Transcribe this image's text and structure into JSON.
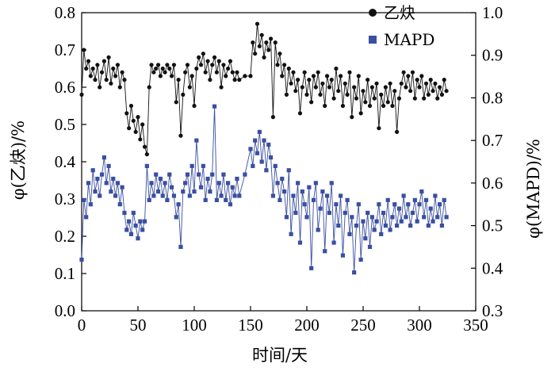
{
  "chart_data": {
    "type": "line",
    "xlabel": "时间/天",
    "ylabel_left": "φ(乙炔)/%",
    "ylabel_right": "φ(MAPD)/%",
    "xlim": [
      0,
      350
    ],
    "xticks": [
      0,
      50,
      100,
      150,
      200,
      250,
      300,
      350
    ],
    "ylim_left": [
      0.0,
      0.8
    ],
    "yticks_left": [
      0.0,
      0.1,
      0.2,
      0.3,
      0.4,
      0.5,
      0.6,
      0.7,
      0.8
    ],
    "ytick_labels_left": [
      "0.0",
      "0.1",
      "0.2",
      "0.3",
      "0.4",
      "0.5",
      "0.6",
      "0.7",
      "0.8"
    ],
    "ylim_right": [
      0.3,
      1.0
    ],
    "yticks_right": [
      0.3,
      0.4,
      0.5,
      0.6,
      0.7,
      0.8,
      0.9,
      1.0
    ],
    "ytick_labels_right": [
      "0.3",
      "0.4",
      "0.5",
      "0.6",
      "0.7",
      "0.8",
      "0.9",
      "1.0"
    ],
    "legend_position": "top-right",
    "colors": {
      "acetylene": "#111111",
      "mapd": "#3a4fa0"
    },
    "series": [
      {
        "name": "乙炔",
        "axis": "left",
        "marker": "circle",
        "x": [
          0,
          2,
          4,
          6,
          8,
          10,
          12,
          14,
          16,
          18,
          20,
          22,
          24,
          26,
          28,
          30,
          32,
          34,
          36,
          38,
          40,
          42,
          44,
          46,
          48,
          50,
          52,
          54,
          56,
          58,
          60,
          62,
          64,
          66,
          68,
          70,
          72,
          74,
          76,
          78,
          80,
          82,
          84,
          86,
          88,
          90,
          92,
          94,
          96,
          98,
          100,
          102,
          104,
          106,
          108,
          110,
          112,
          114,
          116,
          118,
          120,
          122,
          124,
          126,
          128,
          130,
          132,
          134,
          136,
          138,
          140,
          145,
          150,
          152,
          154,
          156,
          158,
          160,
          162,
          164,
          166,
          168,
          170,
          172,
          174,
          176,
          178,
          180,
          182,
          184,
          186,
          188,
          190,
          192,
          194,
          196,
          198,
          200,
          202,
          204,
          206,
          208,
          210,
          212,
          214,
          216,
          218,
          220,
          222,
          224,
          226,
          228,
          230,
          232,
          234,
          236,
          238,
          240,
          242,
          244,
          246,
          248,
          250,
          252,
          254,
          256,
          258,
          260,
          262,
          264,
          266,
          268,
          270,
          272,
          274,
          276,
          278,
          280,
          282,
          284,
          286,
          288,
          290,
          292,
          294,
          296,
          298,
          300,
          302,
          304,
          306,
          308,
          310,
          312,
          314,
          316,
          318,
          320,
          322,
          324
        ],
        "values": [
          0.58,
          0.7,
          0.65,
          0.67,
          0.63,
          0.65,
          0.62,
          0.66,
          0.6,
          0.64,
          0.67,
          0.62,
          0.68,
          0.61,
          0.65,
          0.63,
          0.66,
          0.6,
          0.64,
          0.62,
          0.53,
          0.49,
          0.55,
          0.51,
          0.48,
          0.52,
          0.46,
          0.5,
          0.44,
          0.42,
          0.6,
          0.66,
          0.64,
          0.65,
          0.66,
          0.63,
          0.65,
          0.64,
          0.66,
          0.65,
          0.63,
          0.66,
          0.56,
          0.62,
          0.47,
          0.58,
          0.64,
          0.66,
          0.6,
          0.63,
          0.55,
          0.65,
          0.68,
          0.66,
          0.69,
          0.64,
          0.67,
          0.62,
          0.66,
          0.68,
          0.64,
          0.67,
          0.6,
          0.66,
          0.63,
          0.65,
          0.67,
          0.64,
          0.62,
          0.64,
          0.62,
          0.63,
          0.63,
          0.72,
          0.69,
          0.77,
          0.71,
          0.74,
          0.68,
          0.72,
          0.7,
          0.73,
          0.52,
          0.72,
          0.66,
          0.69,
          0.63,
          0.66,
          0.58,
          0.65,
          0.61,
          0.64,
          0.59,
          0.62,
          0.53,
          0.6,
          0.64,
          0.58,
          0.62,
          0.56,
          0.63,
          0.6,
          0.64,
          0.58,
          0.61,
          0.55,
          0.63,
          0.6,
          0.62,
          0.57,
          0.65,
          0.59,
          0.63,
          0.55,
          0.61,
          0.58,
          0.64,
          0.52,
          0.6,
          0.57,
          0.63,
          0.53,
          0.59,
          0.56,
          0.62,
          0.55,
          0.6,
          0.57,
          0.61,
          0.49,
          0.58,
          0.55,
          0.6,
          0.56,
          0.61,
          0.55,
          0.59,
          0.48,
          0.57,
          0.61,
          0.64,
          0.6,
          0.63,
          0.59,
          0.64,
          0.57,
          0.62,
          0.6,
          0.63,
          0.57,
          0.61,
          0.58,
          0.62,
          0.59,
          0.61,
          0.57,
          0.6,
          0.58,
          0.62,
          0.59
        ]
      },
      {
        "name": "MAPD",
        "axis": "right",
        "marker": "square",
        "x": [
          0,
          2,
          4,
          6,
          8,
          10,
          12,
          14,
          16,
          18,
          20,
          22,
          24,
          26,
          28,
          30,
          32,
          34,
          36,
          38,
          40,
          42,
          44,
          46,
          48,
          50,
          52,
          54,
          56,
          58,
          60,
          62,
          64,
          66,
          68,
          70,
          72,
          74,
          76,
          78,
          80,
          82,
          84,
          86,
          88,
          90,
          92,
          94,
          96,
          98,
          100,
          102,
          104,
          106,
          108,
          110,
          112,
          114,
          116,
          118,
          120,
          122,
          124,
          126,
          128,
          130,
          132,
          134,
          136,
          138,
          140,
          145,
          150,
          152,
          154,
          156,
          158,
          160,
          162,
          164,
          166,
          168,
          170,
          172,
          174,
          176,
          178,
          180,
          182,
          184,
          186,
          188,
          190,
          192,
          194,
          196,
          198,
          200,
          202,
          204,
          206,
          208,
          210,
          212,
          214,
          216,
          218,
          220,
          222,
          224,
          226,
          228,
          230,
          232,
          234,
          236,
          238,
          240,
          242,
          244,
          246,
          248,
          250,
          252,
          254,
          256,
          258,
          260,
          262,
          264,
          266,
          268,
          270,
          272,
          274,
          276,
          278,
          280,
          282,
          284,
          286,
          288,
          290,
          292,
          294,
          296,
          298,
          300,
          302,
          304,
          306,
          308,
          310,
          312,
          314,
          316,
          318,
          320,
          322,
          324
        ],
        "values": [
          0.42,
          0.56,
          0.52,
          0.6,
          0.55,
          0.63,
          0.58,
          0.61,
          0.57,
          0.62,
          0.66,
          0.6,
          0.64,
          0.58,
          0.61,
          0.57,
          0.6,
          0.55,
          0.59,
          0.53,
          0.49,
          0.51,
          0.48,
          0.53,
          0.5,
          0.47,
          0.51,
          0.49,
          0.51,
          0.64,
          0.56,
          0.6,
          0.57,
          0.62,
          0.58,
          0.61,
          0.57,
          0.6,
          0.56,
          0.62,
          0.59,
          0.57,
          0.52,
          0.55,
          0.45,
          0.58,
          0.6,
          0.62,
          0.57,
          0.64,
          0.58,
          0.7,
          0.62,
          0.59,
          0.64,
          0.56,
          0.61,
          0.58,
          0.62,
          0.78,
          0.56,
          0.6,
          0.57,
          0.62,
          0.56,
          0.6,
          0.55,
          0.59,
          0.57,
          0.61,
          0.57,
          0.62,
          0.68,
          0.64,
          0.7,
          0.67,
          0.72,
          0.65,
          0.7,
          0.63,
          0.69,
          0.66,
          0.57,
          0.64,
          0.6,
          0.56,
          0.61,
          0.58,
          0.52,
          0.63,
          0.48,
          0.57,
          0.53,
          0.6,
          0.46,
          0.58,
          0.55,
          0.52,
          0.59,
          0.4,
          0.56,
          0.6,
          0.49,
          0.54,
          0.58,
          0.44,
          0.57,
          0.53,
          0.6,
          0.46,
          0.55,
          0.5,
          0.57,
          0.43,
          0.53,
          0.56,
          0.48,
          0.52,
          0.39,
          0.5,
          0.55,
          0.42,
          0.51,
          0.47,
          0.53,
          0.45,
          0.52,
          0.49,
          0.51,
          0.55,
          0.48,
          0.53,
          0.5,
          0.56,
          0.49,
          0.52,
          0.55,
          0.5,
          0.54,
          0.51,
          0.57,
          0.52,
          0.55,
          0.5,
          0.53,
          0.56,
          0.51,
          0.55,
          0.58,
          0.52,
          0.56,
          0.5,
          0.54,
          0.51,
          0.57,
          0.52,
          0.55,
          0.5,
          0.56,
          0.52
        ]
      }
    ]
  }
}
